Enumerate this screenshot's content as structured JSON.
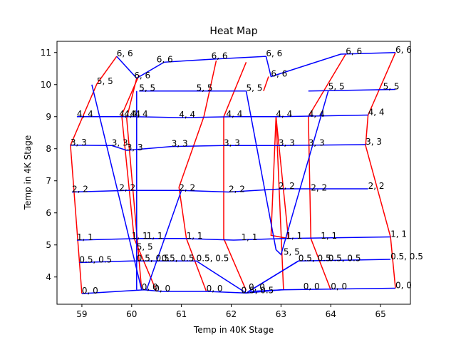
{
  "chart_data": {
    "type": "line",
    "title": "Heat Map",
    "xlabel": "Temp in 40K Stage",
    "ylabel": "Temp in 4K Stage",
    "xlim": [
      58.5,
      65.6
    ],
    "ylim": [
      3.15,
      11.35
    ],
    "xticks": [
      59,
      60,
      61,
      62,
      63,
      64,
      65
    ],
    "yticks": [
      4,
      5,
      6,
      7,
      8,
      9,
      10,
      11
    ],
    "grid": false,
    "legend": "none",
    "colors": {
      "red_series": "#ff0000",
      "blue_series": "#0000ff"
    },
    "red_lines": [
      [
        [
          59,
          3.48
        ],
        [
          58.77,
          8.11
        ],
        [
          59.3,
          10.02
        ],
        [
          59.7,
          10.88
        ]
      ],
      [
        [
          60.5,
          3.55
        ],
        [
          60.05,
          5.2
        ],
        [
          59.8,
          9.05
        ],
        [
          60.15,
          10.3
        ]
      ],
      [
        [
          60.2,
          3.6
        ],
        [
          59.9,
          8.95
        ],
        [
          60.1,
          10.2
        ]
      ],
      [
        [
          61.5,
          3.55
        ],
        [
          61.1,
          5.2
        ],
        [
          60.95,
          6.8
        ],
        [
          61.45,
          9.0
        ],
        [
          61.7,
          10.75
        ]
      ],
      [
        [
          62.3,
          3.58
        ],
        [
          61.85,
          5.2
        ],
        [
          61.85,
          9.0
        ],
        [
          62.3,
          10.7
        ]
      ],
      [
        [
          63.05,
          3.6
        ],
        [
          62.9,
          9.0
        ],
        [
          63.15,
          5.2
        ],
        [
          62.8,
          5.3
        ],
        [
          62.9,
          9.0
        ]
      ],
      [
        [
          64,
          3.6
        ],
        [
          63.6,
          5.2
        ],
        [
          63.55,
          9.0
        ],
        [
          64.3,
          10.95
        ]
      ],
      [
        [
          65.3,
          3.65
        ],
        [
          65.2,
          5.25
        ],
        [
          64.7,
          8.1
        ],
        [
          64.75,
          9.05
        ],
        [
          65.3,
          11.0
        ]
      ],
      [
        [
          62.75,
          10.25
        ],
        [
          62.65,
          9.8
        ]
      ]
    ],
    "blue_lines": [
      [
        [
          59.0,
          3.48
        ],
        [
          60.25,
          3.6
        ],
        [
          60.6,
          3.55
        ],
        [
          61.5,
          3.55
        ],
        [
          62.3,
          3.5
        ],
        [
          63.0,
          3.6
        ],
        [
          64.0,
          3.62
        ],
        [
          65.3,
          3.65
        ]
      ],
      [
        [
          58.95,
          4.45
        ],
        [
          60.0,
          4.5
        ],
        [
          61.3,
          4.5
        ],
        [
          62.3,
          3.5
        ],
        [
          63.35,
          4.5
        ],
        [
          65.2,
          4.55
        ]
      ],
      [
        [
          58.9,
          5.15
        ],
        [
          60.15,
          5.2
        ],
        [
          61.05,
          5.2
        ],
        [
          62.05,
          5.15
        ],
        [
          63.05,
          5.2
        ],
        [
          65.2,
          5.25
        ]
      ],
      [
        [
          58.8,
          6.65
        ],
        [
          59.9,
          6.7
        ],
        [
          60.1,
          6.7
        ],
        [
          61.0,
          6.7
        ],
        [
          61.95,
          6.65
        ],
        [
          63.05,
          6.75
        ],
        [
          64.75,
          6.75
        ]
      ],
      [
        [
          58.77,
          8.11
        ],
        [
          59.6,
          8.1
        ],
        [
          59.9,
          7.95
        ],
        [
          60.8,
          8.07
        ],
        [
          61.85,
          8.1
        ],
        [
          62.95,
          8.1
        ],
        [
          64.7,
          8.13
        ]
      ],
      [
        [
          58.9,
          9.0
        ],
        [
          59.85,
          9.0
        ],
        [
          60.05,
          9.0
        ],
        [
          61.0,
          8.97
        ],
        [
          62.05,
          9.0
        ],
        [
          63.0,
          9.0
        ],
        [
          64.75,
          9.05
        ]
      ],
      [
        [
          60.15,
          9.8
        ],
        [
          62.3,
          9.8
        ]
      ],
      [
        [
          63.55,
          9.8
        ],
        [
          65.3,
          9.85
        ]
      ],
      [
        [
          59.2,
          10.0
        ],
        [
          60.2,
          3.6
        ]
      ],
      [
        [
          59.7,
          10.88
        ],
        [
          60.1,
          10.2
        ],
        [
          60.65,
          10.7
        ],
        [
          61.7,
          10.8
        ],
        [
          62.7,
          10.88
        ],
        [
          62.8,
          10.25
        ],
        [
          64.2,
          10.95
        ],
        [
          65.3,
          11.0
        ]
      ],
      [
        [
          60.1,
          3.6
        ],
        [
          60.1,
          9.8
        ]
      ],
      [
        [
          63.05,
          3.6
        ],
        [
          62.35,
          3.55
        ],
        [
          63.35,
          4.5
        ]
      ],
      [
        [
          61.0,
          6.7
        ],
        [
          60.3,
          3.6
        ]
      ],
      [
        [
          62.3,
          9.8
        ],
        [
          62.9,
          4.85
        ],
        [
          63.0,
          4.7
        ],
        [
          63.95,
          9.8
        ]
      ]
    ],
    "point_labels": [
      {
        "x": 59.0,
        "y": 3.48,
        "text": "0, 0"
      },
      {
        "x": 60.2,
        "y": 3.6,
        "text": "0, 0"
      },
      {
        "x": 60.45,
        "y": 3.55,
        "text": "0, 0"
      },
      {
        "x": 61.5,
        "y": 3.55,
        "text": "0, 0"
      },
      {
        "x": 62.35,
        "y": 3.6,
        "text": "0, 0"
      },
      {
        "x": 63.45,
        "y": 3.62,
        "text": "0, 0"
      },
      {
        "x": 64.0,
        "y": 3.62,
        "text": "0, 0"
      },
      {
        "x": 65.3,
        "y": 3.65,
        "text": "0, 0"
      },
      {
        "x": 58.95,
        "y": 4.45,
        "text": "0.5, 0.5"
      },
      {
        "x": 60.1,
        "y": 4.5,
        "text": "0.5, 0.5"
      },
      {
        "x": 60.6,
        "y": 4.5,
        "text": "0.5, 0.5"
      },
      {
        "x": 61.3,
        "y": 4.5,
        "text": "0.5, 0.5"
      },
      {
        "x": 62.2,
        "y": 3.5,
        "text": "0.5, 0.5"
      },
      {
        "x": 63.35,
        "y": 4.5,
        "text": "0.5, 0.5"
      },
      {
        "x": 63.95,
        "y": 4.5,
        "text": "0.5, 0.5"
      },
      {
        "x": 65.2,
        "y": 4.55,
        "text": "0.5, 0.5"
      },
      {
        "x": 58.9,
        "y": 5.15,
        "text": "1, 1"
      },
      {
        "x": 60.0,
        "y": 5.2,
        "text": "1, 1"
      },
      {
        "x": 60.3,
        "y": 5.2,
        "text": "1, 1"
      },
      {
        "x": 61.1,
        "y": 5.2,
        "text": "1, 1"
      },
      {
        "x": 62.2,
        "y": 5.15,
        "text": "1, 1"
      },
      {
        "x": 63.1,
        "y": 5.2,
        "text": "1, 1"
      },
      {
        "x": 63.8,
        "y": 5.2,
        "text": "1, 1"
      },
      {
        "x": 65.2,
        "y": 5.25,
        "text": "1, 1"
      },
      {
        "x": 60.1,
        "y": 4.85,
        "text": "5, 5"
      },
      {
        "x": 63.05,
        "y": 4.7,
        "text": "5, 5"
      },
      {
        "x": 58.8,
        "y": 6.65,
        "text": "2, 2"
      },
      {
        "x": 59.75,
        "y": 6.7,
        "text": "2, 2"
      },
      {
        "x": 60.95,
        "y": 6.7,
        "text": "2, 2"
      },
      {
        "x": 61.95,
        "y": 6.65,
        "text": "2, 2"
      },
      {
        "x": 62.95,
        "y": 6.75,
        "text": "2, 2"
      },
      {
        "x": 63.6,
        "y": 6.7,
        "text": "2, 2"
      },
      {
        "x": 64.75,
        "y": 6.75,
        "text": "2, 2"
      },
      {
        "x": 58.77,
        "y": 8.11,
        "text": "3, 3"
      },
      {
        "x": 59.6,
        "y": 8.1,
        "text": "3, 3"
      },
      {
        "x": 59.9,
        "y": 7.95,
        "text": "3, 3"
      },
      {
        "x": 60.8,
        "y": 8.07,
        "text": "3, 3"
      },
      {
        "x": 61.85,
        "y": 8.1,
        "text": "3, 3"
      },
      {
        "x": 62.95,
        "y": 8.1,
        "text": "3, 3"
      },
      {
        "x": 63.55,
        "y": 8.1,
        "text": "3, 3"
      },
      {
        "x": 64.7,
        "y": 8.13,
        "text": "3, 3"
      },
      {
        "x": 58.9,
        "y": 9.0,
        "text": "4, 4"
      },
      {
        "x": 59.75,
        "y": 9.0,
        "text": "4, 4"
      },
      {
        "x": 59.85,
        "y": 9.0,
        "text": "4, 4"
      },
      {
        "x": 60.0,
        "y": 9.0,
        "text": "4, 4"
      },
      {
        "x": 60.95,
        "y": 8.97,
        "text": "4, 4"
      },
      {
        "x": 61.9,
        "y": 9.0,
        "text": "4, 4"
      },
      {
        "x": 62.9,
        "y": 9.0,
        "text": "4, 4"
      },
      {
        "x": 63.55,
        "y": 9.0,
        "text": "4, 4"
      },
      {
        "x": 64.75,
        "y": 9.05,
        "text": "4, 4"
      },
      {
        "x": 59.3,
        "y": 10.02,
        "text": "5, 5"
      },
      {
        "x": 60.15,
        "y": 9.8,
        "text": "5, 5"
      },
      {
        "x": 61.3,
        "y": 9.8,
        "text": "5, 5"
      },
      {
        "x": 62.3,
        "y": 9.8,
        "text": "5, 5"
      },
      {
        "x": 63.95,
        "y": 9.85,
        "text": "5, 5"
      },
      {
        "x": 65.05,
        "y": 9.85,
        "text": "5, 5"
      },
      {
        "x": 59.7,
        "y": 10.88,
        "text": "6, 6"
      },
      {
        "x": 60.05,
        "y": 10.2,
        "text": "6, 6"
      },
      {
        "x": 60.5,
        "y": 10.7,
        "text": "6, 6"
      },
      {
        "x": 61.6,
        "y": 10.8,
        "text": "6, 6"
      },
      {
        "x": 62.7,
        "y": 10.88,
        "text": "6, 6"
      },
      {
        "x": 62.8,
        "y": 10.25,
        "text": "6, 6"
      },
      {
        "x": 64.3,
        "y": 10.95,
        "text": "6, 6"
      },
      {
        "x": 65.3,
        "y": 11.0,
        "text": "6, 6"
      }
    ]
  }
}
